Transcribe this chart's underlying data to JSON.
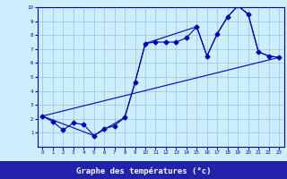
{
  "title": "Graphe des températures (°c)",
  "background_color": "#cceeff",
  "plot_bg_color": "#cceeff",
  "line_color": "#0000bb",
  "xlabel_bg": "#2222aa",
  "xlabel_fg": "#ffffff",
  "xlim": [
    -0.5,
    23.5
  ],
  "ylim": [
    0,
    10
  ],
  "xticks": [
    0,
    1,
    2,
    3,
    4,
    5,
    6,
    7,
    8,
    9,
    10,
    11,
    12,
    13,
    14,
    15,
    16,
    17,
    18,
    19,
    20,
    21,
    22,
    23
  ],
  "yticks": [
    1,
    2,
    3,
    4,
    5,
    6,
    7,
    8,
    9,
    10
  ],
  "series": [
    {
      "x": [
        0,
        1,
        2,
        3,
        4,
        5,
        6,
        7,
        8,
        9,
        10,
        11,
        12,
        13,
        14,
        15,
        16,
        17,
        18,
        19,
        20,
        21,
        22,
        23
      ],
      "y": [
        2.2,
        1.8,
        1.2,
        1.7,
        1.6,
        0.8,
        1.3,
        1.5,
        2.1,
        4.6,
        7.4,
        7.5,
        7.5,
        7.5,
        7.8,
        8.6,
        6.5,
        8.1,
        9.3,
        10.1,
        9.5,
        6.8,
        6.5,
        6.4
      ],
      "marker": "D",
      "markersize": 2.5,
      "linewidth": 0.8
    },
    {
      "x": [
        0,
        5,
        8,
        9,
        10,
        15,
        16,
        17,
        18,
        19,
        20,
        21,
        22,
        23
      ],
      "y": [
        2.2,
        0.8,
        2.1,
        4.6,
        7.4,
        8.6,
        6.5,
        8.1,
        9.3,
        10.1,
        9.5,
        6.8,
        6.5,
        6.4
      ],
      "marker": null,
      "markersize": 0,
      "linewidth": 0.8
    },
    {
      "x": [
        0,
        23
      ],
      "y": [
        2.2,
        6.4
      ],
      "marker": null,
      "markersize": 0,
      "linewidth": 0.8
    }
  ]
}
